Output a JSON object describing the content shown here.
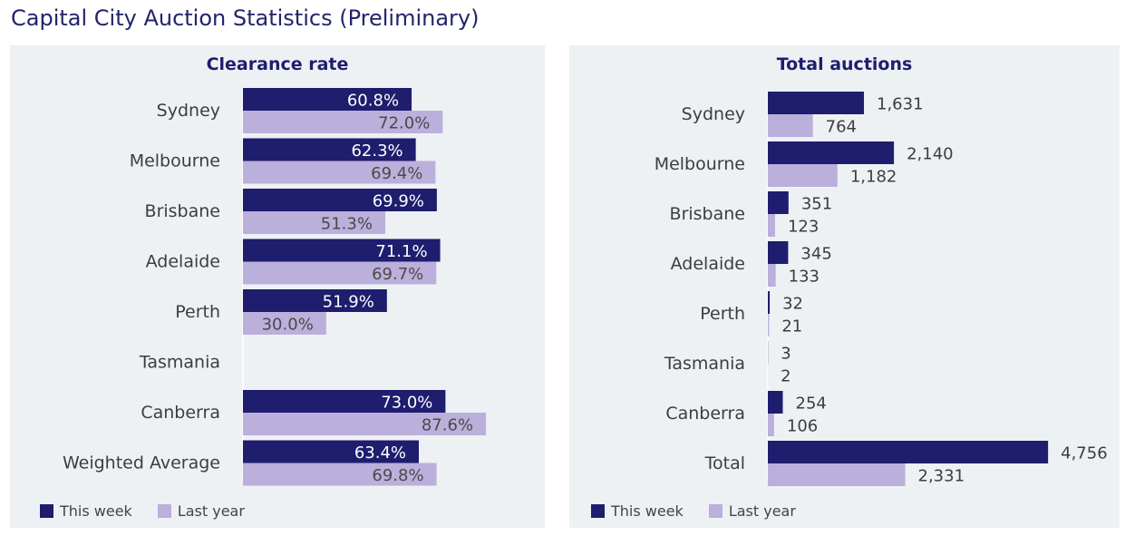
{
  "title": "Capital City Auction Statistics (Preliminary)",
  "colors": {
    "this_week": "#1f1d6e",
    "last_year": "#bbafdb",
    "panel_bg": "#edf1f4"
  },
  "chart_data": [
    {
      "type": "bar",
      "orientation": "horizontal",
      "title": "Clearance rate",
      "categories": [
        "Sydney",
        "Melbourne",
        "Brisbane",
        "Adelaide",
        "Perth",
        "Tasmania",
        "Canberra",
        "Weighted Average"
      ],
      "series": [
        {
          "name": "This week",
          "values": [
            60.8,
            62.3,
            69.9,
            71.1,
            51.9,
            null,
            73.0,
            63.4
          ],
          "labels": [
            "60.8%",
            "62.3%",
            "69.9%",
            "71.1%",
            "51.9%",
            "",
            "73.0%",
            "63.4%"
          ]
        },
        {
          "name": "Last year",
          "values": [
            72.0,
            69.4,
            51.3,
            69.7,
            30.0,
            null,
            87.6,
            69.8
          ],
          "labels": [
            "72.0%",
            "69.4%",
            "51.3%",
            "69.7%",
            "30.0%",
            "",
            "87.6%",
            "69.8%"
          ]
        }
      ],
      "xlim": [
        0,
        100
      ],
      "legend": "bottom-left"
    },
    {
      "type": "bar",
      "orientation": "horizontal",
      "title": "Total auctions",
      "categories": [
        "Sydney",
        "Melbourne",
        "Brisbane",
        "Adelaide",
        "Perth",
        "Tasmania",
        "Canberra",
        "Total"
      ],
      "series": [
        {
          "name": "This week",
          "values": [
            1631,
            2140,
            351,
            345,
            32,
            3,
            254,
            4756
          ],
          "labels": [
            "1,631",
            "2,140",
            "351",
            "345",
            "32",
            "3",
            "254",
            "4,756"
          ]
        },
        {
          "name": "Last year",
          "values": [
            764,
            1182,
            123,
            133,
            21,
            2,
            106,
            2331
          ],
          "labels": [
            "764",
            "1,182",
            "123",
            "133",
            "21",
            "2",
            "106",
            "2,331"
          ]
        }
      ],
      "xlim": [
        0,
        5000
      ],
      "legend": "bottom-left"
    }
  ]
}
